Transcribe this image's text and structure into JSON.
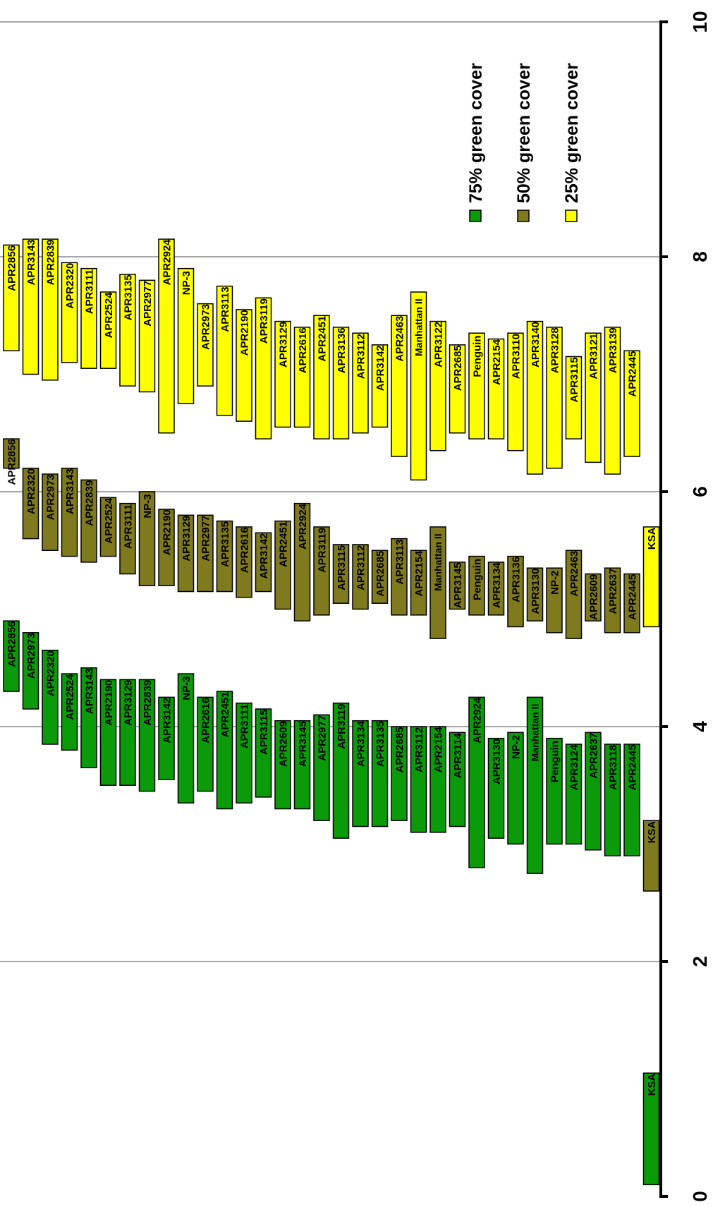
{
  "chart_data": {
    "type": "floating-bar",
    "orientation": "vertical-value-axis",
    "value_axis": {
      "range": [
        0,
        10
      ],
      "ticks": [
        "0",
        "2",
        "4",
        "6",
        "8",
        "10"
      ],
      "grid": true
    },
    "series": [
      {
        "name": "75% green cover",
        "color": "#0a9a0a",
        "bars": [
          {
            "label": "APR2856",
            "low": 4.3,
            "high": 4.9
          },
          {
            "label": "APR2973",
            "low": 4.15,
            "high": 4.8
          },
          {
            "label": "APR2320",
            "low": 3.85,
            "high": 4.65
          },
          {
            "label": "APR2524",
            "low": 3.8,
            "high": 4.45
          },
          {
            "label": "APR3143",
            "low": 3.65,
            "high": 4.5
          },
          {
            "label": "APR2190",
            "low": 3.5,
            "high": 4.4
          },
          {
            "label": "APR3129",
            "low": 3.5,
            "high": 4.4
          },
          {
            "label": "APR2839",
            "low": 3.45,
            "high": 4.4
          },
          {
            "label": "APR3142",
            "low": 3.55,
            "high": 4.25
          },
          {
            "label": "NP-3",
            "low": 3.35,
            "high": 4.45
          },
          {
            "label": "APR2616",
            "low": 3.45,
            "high": 4.25
          },
          {
            "label": "APR2451",
            "low": 3.3,
            "high": 4.3
          },
          {
            "label": "APR3111",
            "low": 3.35,
            "high": 4.2
          },
          {
            "label": "APR3115",
            "low": 3.4,
            "high": 4.15
          },
          {
            "label": "APR2609",
            "low": 3.3,
            "high": 4.05
          },
          {
            "label": "APR3145",
            "low": 3.3,
            "high": 4.05
          },
          {
            "label": "APR2977",
            "low": 3.2,
            "high": 4.1
          },
          {
            "label": "APR3119",
            "low": 3.05,
            "high": 4.2
          },
          {
            "label": "APR3134",
            "low": 3.15,
            "high": 4.05
          },
          {
            "label": "APR3135",
            "low": 3.15,
            "high": 4.05
          },
          {
            "label": "APR2685",
            "low": 3.2,
            "high": 4.0
          },
          {
            "label": "APR3112",
            "low": 3.1,
            "high": 4.0
          },
          {
            "label": "APR2154",
            "low": 3.1,
            "high": 4.0
          },
          {
            "label": "APR3114",
            "low": 3.15,
            "high": 3.95
          },
          {
            "label": "APR2924",
            "low": 2.8,
            "high": 4.25
          },
          {
            "label": "APR3130",
            "low": 3.05,
            "high": 3.9
          },
          {
            "label": "NP-2",
            "low": 3.0,
            "high": 3.95
          },
          {
            "label": "Manhattan II",
            "low": 2.75,
            "high": 4.25
          },
          {
            "label": "Penguin",
            "low": 3.0,
            "high": 3.9
          },
          {
            "label": "APR3124",
            "low": 3.0,
            "high": 3.85
          },
          {
            "label": "APR2637",
            "low": 2.95,
            "high": 3.95
          },
          {
            "label": "APR3118",
            "low": 2.9,
            "high": 3.85
          },
          {
            "label": "APR2445",
            "low": 2.9,
            "high": 3.85
          },
          {
            "label": "KSA",
            "low": 0.1,
            "high": 1.05
          }
        ]
      },
      {
        "name": "50% green cover",
        "color": "#807a1e",
        "bars": [
          {
            "label": "APR2856",
            "low": 6.2,
            "high": 6.45
          },
          {
            "label": "APR2320",
            "low": 5.6,
            "high": 6.2
          },
          {
            "label": "APR2973",
            "low": 5.5,
            "high": 6.15
          },
          {
            "label": "APR3143",
            "low": 5.45,
            "high": 6.2
          },
          {
            "label": "APR2839",
            "low": 5.4,
            "high": 6.1
          },
          {
            "label": "APR2524",
            "low": 5.45,
            "high": 5.95
          },
          {
            "label": "APR3111",
            "low": 5.3,
            "high": 5.9
          },
          {
            "label": "NP-3",
            "low": 5.2,
            "high": 6.0
          },
          {
            "label": "APR2190",
            "low": 5.2,
            "high": 5.85
          },
          {
            "label": "APR3129",
            "low": 5.15,
            "high": 5.8
          },
          {
            "label": "APR2977",
            "low": 5.15,
            "high": 5.8
          },
          {
            "label": "APR3135",
            "low": 5.15,
            "high": 5.75
          },
          {
            "label": "APR2616",
            "low": 5.1,
            "high": 5.7
          },
          {
            "label": "APR3142",
            "low": 5.15,
            "high": 5.65
          },
          {
            "label": "APR2451",
            "low": 5.0,
            "high": 5.75
          },
          {
            "label": "APR2924",
            "low": 4.9,
            "high": 5.9
          },
          {
            "label": "APR3119",
            "low": 4.95,
            "high": 5.7
          },
          {
            "label": "APR3115",
            "low": 5.05,
            "high": 5.55
          },
          {
            "label": "APR3112",
            "low": 5.0,
            "high": 5.55
          },
          {
            "label": "APR2685",
            "low": 5.05,
            "high": 5.5
          },
          {
            "label": "APR3113",
            "low": 4.95,
            "high": 5.6
          },
          {
            "label": "APR2154",
            "low": 4.95,
            "high": 5.5
          },
          {
            "label": "Manhattan II",
            "low": 4.75,
            "high": 5.7
          },
          {
            "label": "APR3145",
            "low": 5.0,
            "high": 5.4
          },
          {
            "label": "Penguin",
            "low": 4.95,
            "high": 5.45
          },
          {
            "label": "APR3134",
            "low": 4.95,
            "high": 5.4
          },
          {
            "label": "APR3136",
            "low": 4.85,
            "high": 5.45
          },
          {
            "label": "APR3130",
            "low": 4.9,
            "high": 5.35
          },
          {
            "label": "NP-2",
            "low": 4.8,
            "high": 5.35
          },
          {
            "label": "APR2463",
            "low": 4.75,
            "high": 5.5
          },
          {
            "label": "APR2609",
            "low": 4.9,
            "high": 5.3
          },
          {
            "label": "APR2637",
            "low": 4.8,
            "high": 5.35
          },
          {
            "label": "APR2445",
            "low": 4.8,
            "high": 5.3
          },
          {
            "label": "KSA",
            "low": 2.6,
            "high": 3.2
          }
        ]
      },
      {
        "name": "25% green cover",
        "color": "#ffff00",
        "bars": [
          {
            "label": "APR2856",
            "low": 7.2,
            "high": 8.1
          },
          {
            "label": "APR3143",
            "low": 7.0,
            "high": 8.15
          },
          {
            "label": "APR2839",
            "low": 6.95,
            "high": 8.15
          },
          {
            "label": "APR2320",
            "low": 7.1,
            "high": 7.95
          },
          {
            "label": "APR3111",
            "low": 7.05,
            "high": 7.9
          },
          {
            "label": "APR2524",
            "low": 7.05,
            "high": 7.7
          },
          {
            "label": "APR3135",
            "low": 6.9,
            "high": 7.85
          },
          {
            "label": "APR2977",
            "low": 6.85,
            "high": 7.8
          },
          {
            "label": "APR2924",
            "low": 6.5,
            "high": 8.15
          },
          {
            "label": "NP-3",
            "low": 6.75,
            "high": 7.9
          },
          {
            "label": "APR2973",
            "low": 6.9,
            "high": 7.6
          },
          {
            "label": "APR3113",
            "low": 6.65,
            "high": 7.75
          },
          {
            "label": "APR2190",
            "low": 6.6,
            "high": 7.55
          },
          {
            "label": "APR3119",
            "low": 6.45,
            "high": 7.65
          },
          {
            "label": "APR3129",
            "low": 6.55,
            "high": 7.45
          },
          {
            "label": "APR2616",
            "low": 6.55,
            "high": 7.4
          },
          {
            "label": "APR2451",
            "low": 6.45,
            "high": 7.5
          },
          {
            "label": "APR3136",
            "low": 6.45,
            "high": 7.4
          },
          {
            "label": "APR3112",
            "low": 6.5,
            "high": 7.35
          },
          {
            "label": "APR3142",
            "low": 6.55,
            "high": 7.25
          },
          {
            "label": "APR2463",
            "low": 6.3,
            "high": 7.5
          },
          {
            "label": "Manhattan II",
            "low": 6.1,
            "high": 7.7
          },
          {
            "label": "APR3122",
            "low": 6.35,
            "high": 7.45
          },
          {
            "label": "APR2685",
            "low": 6.5,
            "high": 7.25
          },
          {
            "label": "Penguin",
            "low": 6.45,
            "high": 7.35
          },
          {
            "label": "APR2154",
            "low": 6.45,
            "high": 7.3
          },
          {
            "label": "APR3110",
            "low": 6.35,
            "high": 7.35
          },
          {
            "label": "APR3140",
            "low": 6.15,
            "high": 7.45
          },
          {
            "label": "APR3128",
            "low": 6.2,
            "high": 7.4
          },
          {
            "label": "APR3115",
            "low": 6.45,
            "high": 7.15
          },
          {
            "label": "APR3121",
            "low": 6.25,
            "high": 7.35
          },
          {
            "label": "APR3139",
            "low": 6.15,
            "high": 7.4
          },
          {
            "label": "APR2445",
            "low": 6.3,
            "high": 7.2
          },
          {
            "label": "KSA",
            "low": 4.85,
            "high": 5.7
          }
        ]
      }
    ],
    "legend": {
      "placement": "top-right",
      "entries": [
        "75% green cover",
        "50% green cover",
        "25% green cover"
      ]
    }
  }
}
